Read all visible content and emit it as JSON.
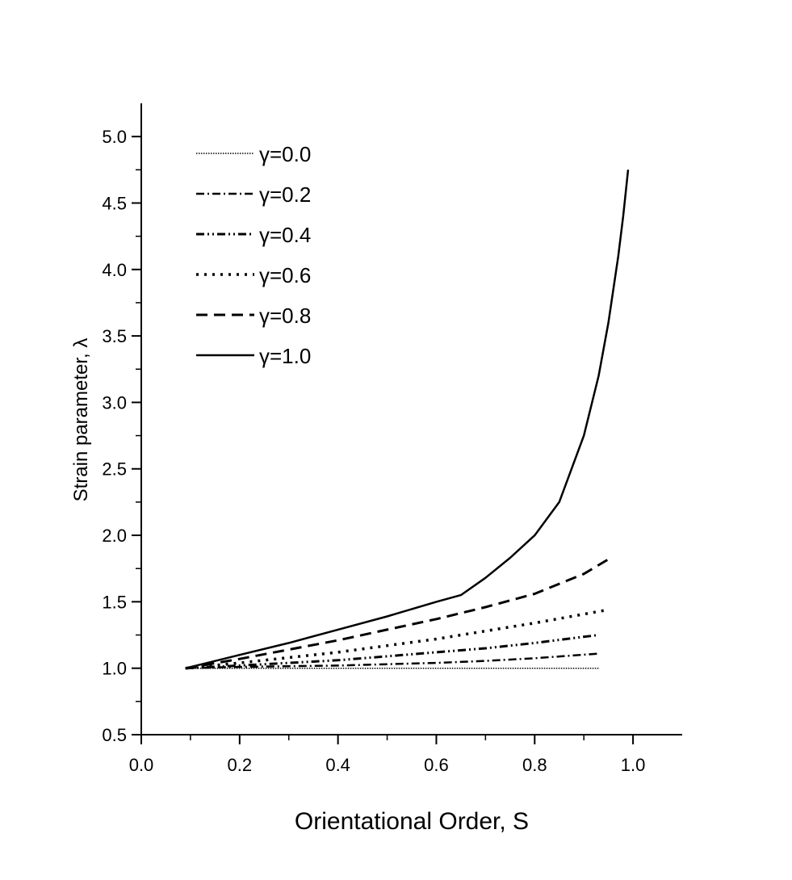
{
  "chart_data": {
    "type": "line",
    "title": "",
    "xlabel": "Orientational Order, S",
    "ylabel": "Strain parameter, λ",
    "xlim": [
      0.0,
      1.1
    ],
    "ylim": [
      0.5,
      5.25
    ],
    "x_ticks": [
      "0.0",
      "0.2",
      "0.4",
      "0.6",
      "0.8",
      "1.0"
    ],
    "y_ticks": [
      "0.5",
      "1.0",
      "1.5",
      "2.0",
      "2.5",
      "3.0",
      "3.5",
      "4.0",
      "4.5",
      "5.0"
    ],
    "grid": false,
    "legend_position": "top-left",
    "colors": {
      "line": "#000000",
      "background": "#ffffff"
    },
    "series": [
      {
        "name": "γ=0.0",
        "style": "dense-dotted",
        "x": [
          0.09,
          0.2,
          0.3,
          0.4,
          0.5,
          0.6,
          0.7,
          0.8,
          0.93
        ],
        "y": [
          1.0,
          1.0,
          1.0,
          1.0,
          1.0,
          1.0,
          1.0,
          1.0,
          1.0
        ]
      },
      {
        "name": "γ=0.2",
        "style": "dash-dot",
        "x": [
          0.09,
          0.2,
          0.3,
          0.4,
          0.5,
          0.6,
          0.7,
          0.8,
          0.93
        ],
        "y": [
          1.0,
          1.01,
          1.015,
          1.02,
          1.03,
          1.04,
          1.055,
          1.075,
          1.11
        ]
      },
      {
        "name": "γ=0.4",
        "style": "dash-dot-dot",
        "x": [
          0.09,
          0.2,
          0.3,
          0.4,
          0.5,
          0.6,
          0.7,
          0.8,
          0.93
        ],
        "y": [
          1.0,
          1.02,
          1.04,
          1.06,
          1.09,
          1.12,
          1.15,
          1.19,
          1.25
        ]
      },
      {
        "name": "γ=0.6",
        "style": "dotted",
        "x": [
          0.09,
          0.2,
          0.3,
          0.4,
          0.5,
          0.6,
          0.7,
          0.8,
          0.95
        ],
        "y": [
          1.0,
          1.04,
          1.08,
          1.12,
          1.17,
          1.22,
          1.28,
          1.34,
          1.44
        ]
      },
      {
        "name": "γ=0.8",
        "style": "dashed",
        "x": [
          0.09,
          0.2,
          0.3,
          0.4,
          0.5,
          0.6,
          0.7,
          0.8,
          0.9,
          0.95
        ],
        "y": [
          1.0,
          1.07,
          1.14,
          1.21,
          1.29,
          1.37,
          1.46,
          1.56,
          1.71,
          1.82
        ]
      },
      {
        "name": "γ=1.0",
        "style": "solid",
        "x": [
          0.09,
          0.2,
          0.3,
          0.4,
          0.5,
          0.6,
          0.65,
          0.7,
          0.75,
          0.8,
          0.85,
          0.9,
          0.93,
          0.95,
          0.97,
          0.98,
          0.99
        ],
        "y": [
          1.0,
          1.1,
          1.19,
          1.29,
          1.39,
          1.5,
          1.55,
          1.68,
          1.83,
          2.0,
          2.25,
          2.75,
          3.2,
          3.6,
          4.1,
          4.4,
          4.75
        ]
      }
    ]
  }
}
